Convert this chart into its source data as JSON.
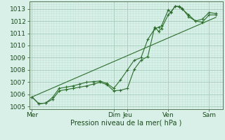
{
  "background_color": "#cce8dc",
  "plot_bg_color": "#d8f0e8",
  "grid_major_color": "#aacfbf",
  "grid_minor_color": "#c4e4d8",
  "line_color": "#2d6e2d",
  "marker_color": "#2d6e2d",
  "xlabel": "Pression niveau de la mer( hPa )",
  "ylim": [
    1004.8,
    1013.6
  ],
  "yticks": [
    1005,
    1006,
    1007,
    1008,
    1009,
    1010,
    1011,
    1012,
    1013
  ],
  "x_day_labels": [
    "Mer",
    "",
    "Dim",
    "Jeu",
    "",
    "Ven",
    "",
    "Sam"
  ],
  "x_day_positions": [
    0.0,
    1.5,
    3.0,
    3.5,
    4.5,
    5.0,
    5.75,
    6.5
  ],
  "x_day_show": [
    true,
    false,
    true,
    true,
    false,
    true,
    false,
    true
  ],
  "xlim": [
    -0.1,
    7.0
  ],
  "series1": [
    [
      0.0,
      1005.8
    ],
    [
      0.25,
      1005.25
    ],
    [
      0.5,
      1005.3
    ],
    [
      0.75,
      1005.6
    ],
    [
      1.0,
      1006.3
    ],
    [
      1.25,
      1006.4
    ],
    [
      1.5,
      1006.5
    ],
    [
      1.75,
      1006.6
    ],
    [
      2.0,
      1006.7
    ],
    [
      2.25,
      1006.85
    ],
    [
      2.5,
      1007.0
    ],
    [
      2.75,
      1006.8
    ],
    [
      3.0,
      1006.3
    ],
    [
      3.25,
      1006.35
    ],
    [
      3.5,
      1006.5
    ],
    [
      3.75,
      1008.05
    ],
    [
      4.0,
      1008.8
    ],
    [
      4.25,
      1009.1
    ],
    [
      4.5,
      1011.5
    ],
    [
      4.65,
      1011.15
    ],
    [
      4.75,
      1011.4
    ],
    [
      5.0,
      1012.5
    ],
    [
      5.1,
      1012.75
    ],
    [
      5.25,
      1013.2
    ],
    [
      5.4,
      1013.15
    ],
    [
      5.5,
      1013.0
    ],
    [
      5.75,
      1012.5
    ],
    [
      6.0,
      1012.0
    ],
    [
      6.25,
      1011.9
    ],
    [
      6.5,
      1012.5
    ],
    [
      6.75,
      1012.5
    ]
  ],
  "series2": [
    [
      0.0,
      1005.8
    ],
    [
      0.25,
      1005.25
    ],
    [
      0.5,
      1005.3
    ],
    [
      0.75,
      1005.75
    ],
    [
      1.0,
      1006.5
    ],
    [
      1.25,
      1006.6
    ],
    [
      1.5,
      1006.7
    ],
    [
      1.75,
      1006.85
    ],
    [
      2.0,
      1007.0
    ],
    [
      2.25,
      1007.05
    ],
    [
      2.5,
      1007.1
    ],
    [
      2.75,
      1006.9
    ],
    [
      3.0,
      1006.5
    ],
    [
      3.25,
      1007.2
    ],
    [
      3.5,
      1008.0
    ],
    [
      3.75,
      1008.8
    ],
    [
      4.0,
      1009.0
    ],
    [
      4.25,
      1010.5
    ],
    [
      4.5,
      1011.35
    ],
    [
      4.65,
      1011.5
    ],
    [
      4.75,
      1011.6
    ],
    [
      5.0,
      1012.9
    ],
    [
      5.1,
      1012.7
    ],
    [
      5.25,
      1013.2
    ],
    [
      5.4,
      1013.2
    ],
    [
      5.5,
      1013.05
    ],
    [
      5.75,
      1012.35
    ],
    [
      6.0,
      1012.0
    ],
    [
      6.25,
      1012.15
    ],
    [
      6.5,
      1012.7
    ],
    [
      6.75,
      1012.6
    ]
  ],
  "series3_straight": [
    [
      0.0,
      1005.8
    ],
    [
      6.75,
      1012.3
    ]
  ]
}
